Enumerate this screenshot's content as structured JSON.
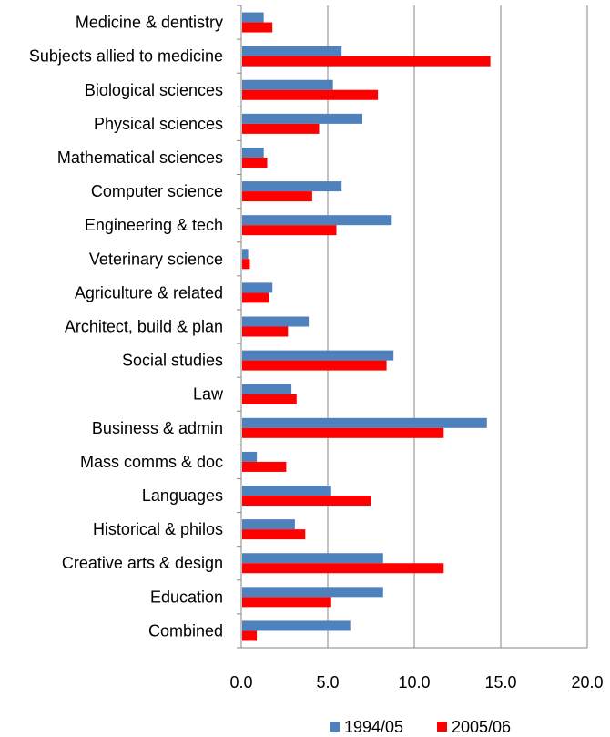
{
  "chart_data": {
    "type": "bar",
    "orientation": "horizontal",
    "title": "",
    "xlabel": "",
    "ylabel": "",
    "xlim": [
      0,
      20
    ],
    "x_ticks": [
      "0.0",
      "5.0",
      "10.0",
      "15.0",
      "20.0"
    ],
    "grid": "vertical",
    "legend_position": "bottom",
    "categories": [
      "Medicine & dentistry",
      "Subjects allied to medicine",
      "Biological sciences",
      "Physical sciences",
      "Mathematical sciences",
      "Computer science",
      "Engineering & tech",
      "Veterinary science",
      "Agriculture & related",
      "Architect, build & plan",
      "Social studies",
      "Law",
      "Business & admin",
      "Mass comms & doc",
      "Languages",
      "Historical & philos",
      "Creative arts & design",
      "Education",
      "Combined"
    ],
    "series": [
      {
        "name": "1994/05",
        "color": "#4f81bd",
        "values": [
          1.3,
          5.8,
          5.3,
          7.0,
          1.3,
          5.8,
          8.7,
          0.4,
          1.8,
          3.9,
          8.8,
          2.9,
          14.2,
          0.9,
          5.2,
          3.1,
          8.2,
          8.2,
          6.3
        ]
      },
      {
        "name": "2005/06",
        "color": "#ff0000",
        "values": [
          1.8,
          14.4,
          7.9,
          4.5,
          1.5,
          4.1,
          5.5,
          0.5,
          1.6,
          2.7,
          8.4,
          3.2,
          11.7,
          2.6,
          7.5,
          3.7,
          11.7,
          5.2,
          0.9
        ]
      }
    ]
  }
}
